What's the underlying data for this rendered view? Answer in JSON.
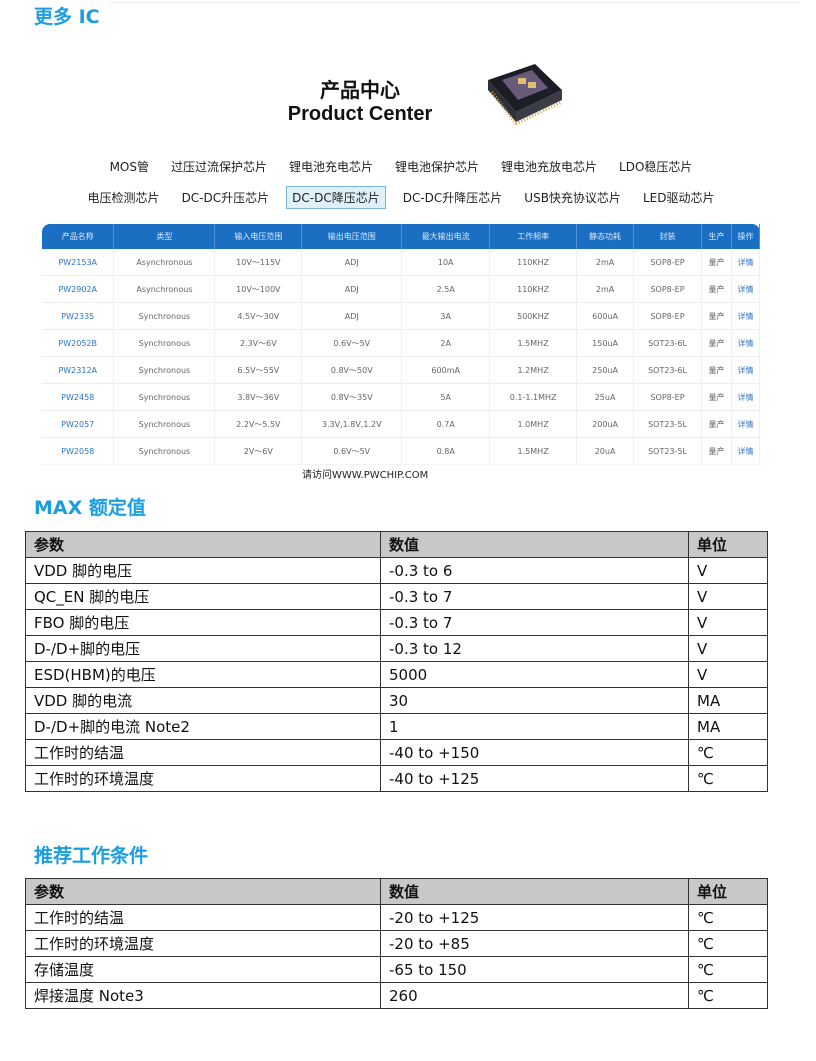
{
  "section_more_ic": "更多 IC",
  "product_center": {
    "title_cn": "产品中心",
    "title_en": "Product Center",
    "categories_row1": [
      "MOS管",
      "过压过流保护芯片",
      "锂电池充电芯片",
      "锂电池保护芯片",
      "锂电池充放电芯片",
      "LDO稳压芯片"
    ],
    "categories_row2": [
      "电压检测芯片",
      "DC-DC升压芯片",
      "DC-DC降压芯片",
      "DC-DC升降压芯片",
      "USB快充协议芯片",
      "LED驱动芯片"
    ],
    "active_category": "DC-DC降压芯片",
    "headers": [
      "产品名称",
      "类型",
      "输入电压范围",
      "输出电压范围",
      "最大输出电流",
      "工作频率",
      "静态功耗",
      "封装",
      "生产",
      "操作"
    ],
    "rows": [
      [
        "PW2153A",
        "Asynchronous",
        "10V～115V",
        "ADJ",
        "10A",
        "110KHZ",
        "2mA",
        "SOP8-EP",
        "量产",
        "详情"
      ],
      [
        "PW2902A",
        "Asynchronous",
        "10V～100V",
        "ADJ",
        "2.5A",
        "110KHZ",
        "2mA",
        "SOP8-EP",
        "量产",
        "详情"
      ],
      [
        "PW2335",
        "Synchronous",
        "4.5V～30V",
        "ADJ",
        "3A",
        "500KHZ",
        "600uA",
        "SOP8-EP",
        "量产",
        "详情"
      ],
      [
        "PW2052B",
        "Synchronous",
        "2.3V～6V",
        "0.6V～5V",
        "2A",
        "1.5MHZ",
        "150uA",
        "SOT23-6L",
        "量产",
        "详情"
      ],
      [
        "PW2312A",
        "Synchronous",
        "6.5V～55V",
        "0.8V～50V",
        "600mA",
        "1.2MHZ",
        "250uA",
        "SOT23-6L",
        "量产",
        "详情"
      ],
      [
        "PW2458",
        "Synchronous",
        "3.8V～36V",
        "0.8V～35V",
        "5A",
        "0.1-1.1MHZ",
        "25uA",
        "SOP8-EP",
        "量产",
        "详情"
      ],
      [
        "PW2057",
        "Synchronous",
        "2.2V～5.5V",
        "3.3V,1.8V,1.2V",
        "0.7A",
        "1.0MHZ",
        "200uA",
        "SOT23-5L",
        "量产",
        "详情"
      ],
      [
        "PW2058",
        "Synchronous",
        "2V～6V",
        "0.6V～5V",
        "0.8A",
        "1.5MHZ",
        "20uA",
        "SOT23-5L",
        "量产",
        "详情"
      ]
    ],
    "watermark": "请访问WWW.PWCHIP.COM",
    "header_color": "#1a6fc2"
  },
  "max_ratings": {
    "title": "MAX 额定值",
    "headers": [
      "参数",
      "数值",
      "单位"
    ],
    "rows": [
      [
        "VDD 脚的电压",
        "-0.3 to 6",
        "V"
      ],
      [
        "QC_EN  脚的电压",
        "-0.3 to 7",
        "V"
      ],
      [
        "FBO 脚的电压",
        "-0.3 to 7",
        "V"
      ],
      [
        "D-/D+脚的电压",
        "-0.3 to 12",
        "V"
      ],
      [
        "ESD(HBM)的电压",
        "5000",
        "V"
      ],
      [
        "VDD 脚的电流",
        "30",
        "MA"
      ],
      [
        "D-/D+脚的电流    Note2",
        "1",
        "MA"
      ],
      [
        "工作时的结温",
        "-40 to +150",
        "℃"
      ],
      [
        "工作时的环境温度",
        "-40 to +125",
        "℃"
      ]
    ]
  },
  "recommended": {
    "title": "推荐工作条件",
    "headers": [
      "参数",
      "数值",
      "单位"
    ],
    "rows": [
      [
        "工作时的结温",
        "-20 to +125",
        "℃"
      ],
      [
        "工作时的环境温度",
        "-20 to +85",
        "℃"
      ],
      [
        "存储温度",
        "-65 to 150",
        "℃"
      ],
      [
        "焊接温度  Note3",
        "260",
        "℃"
      ]
    ]
  },
  "accent_color": "#1a9ee0"
}
